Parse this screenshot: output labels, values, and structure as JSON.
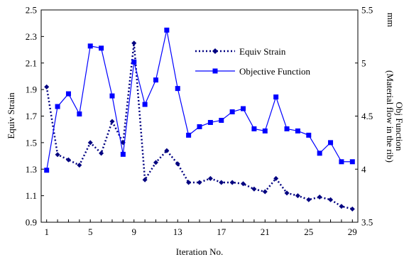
{
  "chart_data": {
    "type": "line",
    "title": "",
    "xlabel": "Iteration No.",
    "ylabel_left": "Equiv Strain",
    "ylabel_right_line1": "Obj Function",
    "ylabel_right_line2": "(Material flow in the rib)",
    "ylabel_right_unit": "mm",
    "x_ticks": [
      1,
      5,
      9,
      13,
      17,
      21,
      25,
      29
    ],
    "x_range": [
      0.5,
      29.5
    ],
    "y_left_range": [
      0.9,
      2.5
    ],
    "y_left_ticks": [
      "0.9",
      "1.1",
      "1.3",
      "1.5",
      "1.7",
      "1.9",
      "2.1",
      "2.3",
      "2.5"
    ],
    "y_right_range": [
      3.5,
      5.5
    ],
    "y_right_ticks": [
      "3.5",
      "4",
      "4.5",
      "5",
      "5.5"
    ],
    "legend_position": "top-center",
    "grid": false,
    "x": [
      1,
      2,
      3,
      4,
      5,
      6,
      7,
      8,
      9,
      10,
      11,
      12,
      13,
      14,
      15,
      16,
      17,
      18,
      19,
      20,
      21,
      22,
      23,
      24,
      25,
      26,
      27,
      28,
      29
    ],
    "series": [
      {
        "name": "Equiv Strain",
        "axis": "left",
        "style": "dotted",
        "marker": "diamond",
        "color": "#000080",
        "values": [
          1.92,
          1.41,
          1.37,
          1.33,
          1.5,
          1.42,
          1.66,
          1.5,
          2.25,
          1.22,
          1.35,
          1.44,
          1.34,
          1.2,
          1.2,
          1.23,
          1.2,
          1.2,
          1.19,
          1.15,
          1.13,
          1.23,
          1.12,
          1.1,
          1.07,
          1.09,
          1.07,
          1.02,
          1.0
        ]
      },
      {
        "name": "Objective Function",
        "axis": "right",
        "style": "solid",
        "marker": "square",
        "color": "#0000FF",
        "values": [
          3.99,
          4.59,
          4.71,
          4.52,
          5.16,
          5.14,
          4.69,
          4.14,
          5.01,
          4.61,
          4.84,
          5.31,
          4.76,
          4.32,
          4.4,
          4.44,
          4.46,
          4.54,
          4.57,
          4.38,
          4.36,
          4.68,
          4.38,
          4.36,
          4.32,
          4.15,
          4.25,
          4.07,
          4.07
        ]
      }
    ]
  }
}
